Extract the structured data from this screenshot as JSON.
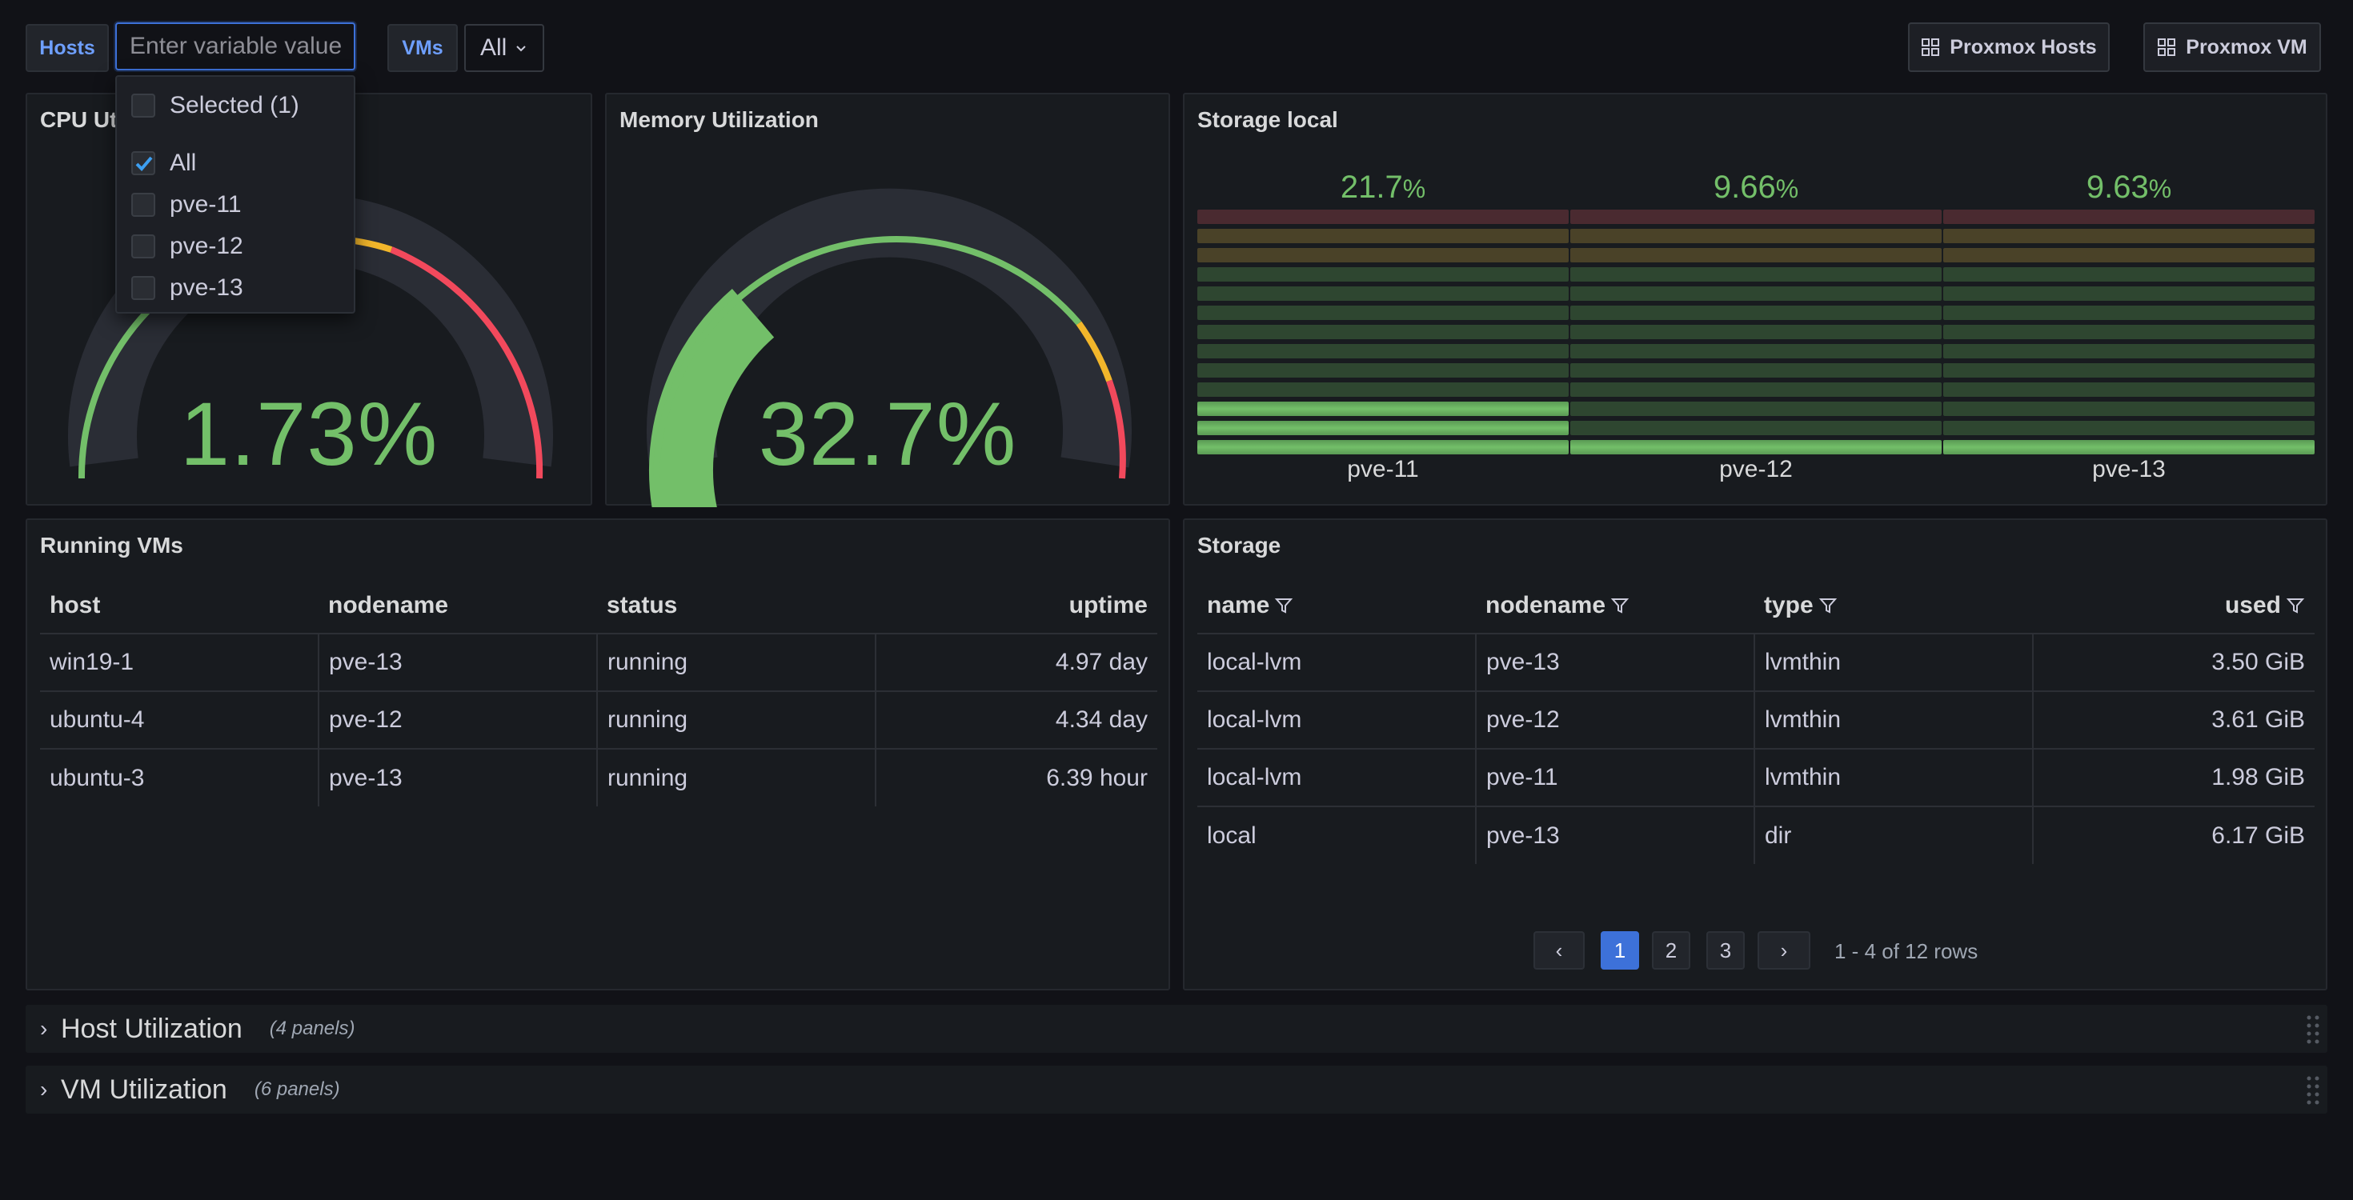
{
  "variables": {
    "hosts_label": "Hosts",
    "hosts_placeholder": "Enter variable value",
    "vms_label": "VMs",
    "vms_value": "All"
  },
  "links": {
    "proxmox_hosts": "Proxmox Hosts",
    "proxmox_vm": "Proxmox VM"
  },
  "dropdown": {
    "selected_header": "Selected (1)",
    "options": [
      {
        "label": "All",
        "checked": true
      },
      {
        "label": "pve-11",
        "checked": false
      },
      {
        "label": "pve-12",
        "checked": false
      },
      {
        "label": "pve-13",
        "checked": false
      }
    ]
  },
  "cpu_panel": {
    "title": "CPU Utilization",
    "value_text": "1.73%",
    "value": 1.73,
    "thresholds": [
      {
        "color": "#73bf69",
        "from": 0
      },
      {
        "color": "#fade2a",
        "from": 70
      },
      {
        "color": "#f2495c",
        "from": 80
      }
    ]
  },
  "memory_panel": {
    "title": "Memory Utilization",
    "value_text": "32.7%",
    "value": 32.7
  },
  "storage_local_panel": {
    "title": "Storage local",
    "bars": [
      {
        "name": "pve-11",
        "value_text": "21.7",
        "unit": "%",
        "value": 21.7
      },
      {
        "name": "pve-12",
        "value_text": "9.66",
        "unit": "%",
        "value": 9.66
      },
      {
        "name": "pve-13",
        "value_text": "9.63",
        "unit": "%",
        "value": 9.63
      }
    ]
  },
  "running_vms": {
    "title": "Running VMs",
    "columns": [
      "host",
      "nodename",
      "status",
      "uptime"
    ],
    "rows": [
      [
        "win19-1",
        "pve-13",
        "running",
        "4.97 day"
      ],
      [
        "ubuntu-4",
        "pve-12",
        "running",
        "4.34 day"
      ],
      [
        "ubuntu-3",
        "pve-13",
        "running",
        "6.39 hour"
      ]
    ]
  },
  "storage": {
    "title": "Storage",
    "columns": [
      "name",
      "nodename",
      "type",
      "used"
    ],
    "rows": [
      [
        "local-lvm",
        "pve-13",
        "lvmthin",
        "3.50 GiB"
      ],
      [
        "local-lvm",
        "pve-12",
        "lvmthin",
        "3.61 GiB"
      ],
      [
        "local-lvm",
        "pve-11",
        "lvmthin",
        "1.98 GiB"
      ],
      [
        "local",
        "pve-13",
        "dir",
        "6.17 GiB"
      ]
    ],
    "pagination": {
      "prev": "‹",
      "pages": [
        "1",
        "2",
        "3"
      ],
      "next": "›",
      "summary": "1 - 4 of 12 rows"
    }
  },
  "row_sections": [
    {
      "title": "Host Utilization",
      "count": "(4 panels)"
    },
    {
      "title": "VM Utilization",
      "count": "(6 panels)"
    }
  ],
  "colors": {
    "green": "#73bf69",
    "yellow": "#f2b62b",
    "red": "#f2495c",
    "accent": "#3d71d9"
  }
}
